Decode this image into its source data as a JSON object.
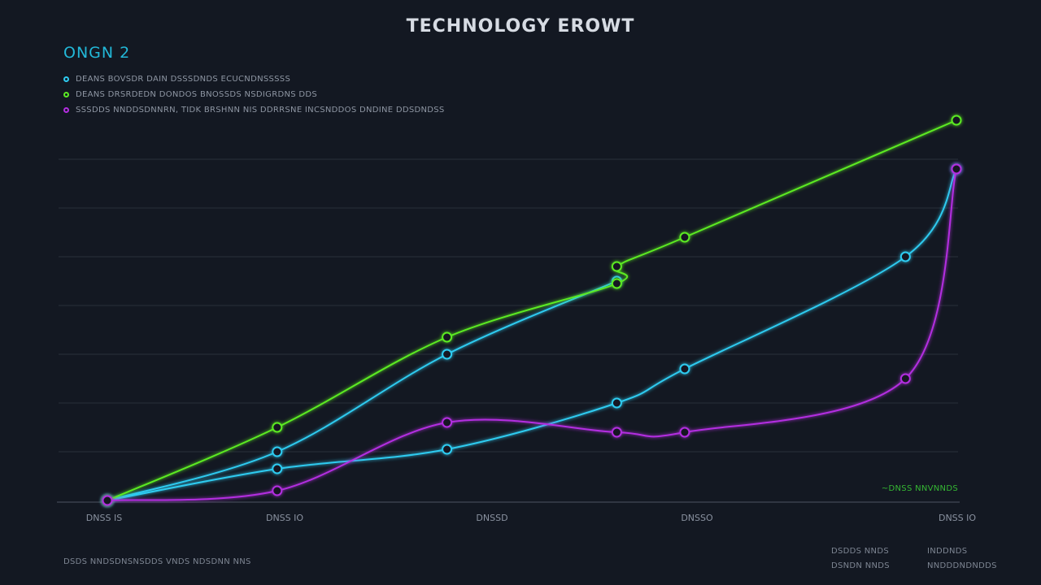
{
  "chart_data": {
    "type": "line",
    "title": "TECHNOLOGY EROWT",
    "panel_label": "ONGN 2",
    "x_tick_labels": [
      "DNSS IS",
      "DNSS IO",
      "DNSSD",
      "DNSSO",
      "DNSS IO"
    ],
    "ylim": [
      0,
      7
    ],
    "grid": true,
    "legend_position": "top-left",
    "series": [
      {
        "name": "DEANS BOVSDR DAIN DSSSDNDS ECUCNDNSSSSS",
        "color": "#2ecbf0",
        "points": [
          [
            0,
            0
          ],
          [
            1,
            1.0
          ],
          [
            2,
            3.0
          ],
          [
            3,
            4.5
          ]
        ]
      },
      {
        "name": "",
        "color": "#2ecbf0",
        "points": [
          [
            0,
            0
          ],
          [
            1,
            0.65
          ],
          [
            2,
            1.05
          ],
          [
            3,
            2.0
          ],
          [
            3.4,
            2.7
          ],
          [
            4.7,
            5.0
          ],
          [
            5,
            6.8
          ]
        ]
      },
      {
        "name": "DEANS DRSRDEDN DONDOS BNOSSDS NSDIGRDNS DDS",
        "color": "#5bea24",
        "points": [
          [
            0,
            0
          ],
          [
            1,
            1.5
          ],
          [
            2,
            3.35
          ],
          [
            3,
            4.45
          ],
          [
            3,
            4.8
          ],
          [
            3.4,
            5.4
          ],
          [
            5,
            7.8
          ]
        ]
      },
      {
        "name": "SSSDDS NNDDSDNNRN, TIDK BRSHNN NIS DDRRSNE INCSNDDOS DNDINE DDSDNDSS",
        "color": "#b32fe0",
        "points": [
          [
            0,
            0
          ],
          [
            1,
            0.2
          ],
          [
            2,
            1.6
          ],
          [
            3,
            1.4
          ],
          [
            3.4,
            1.4
          ],
          [
            4.7,
            2.5
          ],
          [
            5,
            6.8
          ]
        ]
      }
    ]
  },
  "annotations": {
    "corner_note": "~DNSS NNVNNDS",
    "footnote": "DSDS NNDSDNSNSDDS VNDS NDSDNN NNS",
    "footer_col1": [
      "DSDDS NNDS",
      "DSNDN NNDS"
    ],
    "footer_col2": [
      "INDDNDS",
      "NNDDDNDNDDS"
    ]
  }
}
